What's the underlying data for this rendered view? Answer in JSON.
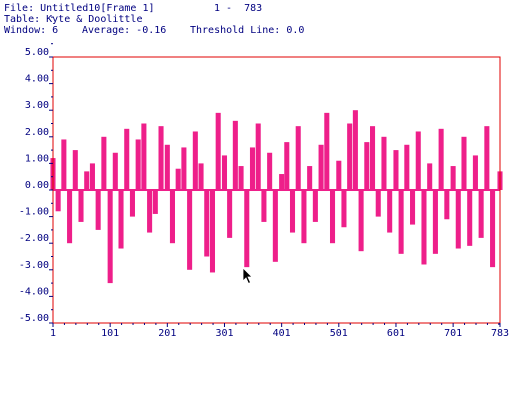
{
  "header": {
    "file_label": "File: Untitled10[Frame 1]",
    "range_label": "1 -  783",
    "table_label": "Table: Kyte & Doolittle",
    "window_label": "Window: 6",
    "average_label": "Average: -0.16",
    "threshold_label": "Threshold Line: 0.0"
  },
  "colors": {
    "frame": "#e00000",
    "series": "#ee1f8a",
    "axis_text": "#000080"
  },
  "chart_data": {
    "type": "bar",
    "title": "",
    "xlabel": "",
    "ylabel": "",
    "xlim": [
      1,
      783
    ],
    "ylim": [
      -5,
      5
    ],
    "threshold": 0.0,
    "x_ticks": [
      "1",
      "101",
      "201",
      "301",
      "401",
      "501",
      "601",
      "701",
      "783"
    ],
    "y_ticks": [
      "5.00",
      "4.00",
      "3.00",
      "2.00",
      "1.00",
      "0.00",
      "-1.00",
      "-2.00",
      "-3.00",
      "-4.00",
      "-5.00"
    ],
    "grid": false,
    "series": [
      {
        "x": [
          1,
          10,
          20,
          30,
          40,
          50,
          60,
          70,
          80,
          90,
          101,
          110,
          120,
          130,
          140,
          150,
          160,
          170,
          180,
          190,
          201,
          210,
          220,
          230,
          240,
          250,
          260,
          270,
          280,
          290,
          301,
          310,
          320,
          330,
          340,
          350,
          360,
          370,
          380,
          390,
          401,
          410,
          420,
          430,
          440,
          450,
          460,
          470,
          480,
          490,
          501,
          510,
          520,
          530,
          540,
          550,
          560,
          570,
          580,
          590,
          601,
          610,
          620,
          630,
          640,
          650,
          660,
          670,
          680,
          690,
          701,
          710,
          720,
          730,
          740,
          750,
          760,
          770,
          783
        ],
        "values": [
          1.2,
          -0.8,
          1.9,
          -2.0,
          1.5,
          -1.2,
          0.7,
          1.0,
          -1.5,
          2.0,
          -3.5,
          1.4,
          -2.2,
          2.3,
          -1.0,
          1.9,
          2.5,
          -1.6,
          -0.9,
          2.4,
          1.7,
          -2.0,
          0.8,
          1.6,
          -3.0,
          2.2,
          1.0,
          -2.5,
          -3.1,
          2.9,
          1.3,
          -1.8,
          2.6,
          0.9,
          -2.9,
          1.6,
          2.5,
          -1.2,
          1.4,
          -2.7,
          0.6,
          1.8,
          -1.6,
          2.4,
          -2.0,
          0.9,
          -1.2,
          1.7,
          2.9,
          -2.0,
          1.1,
          -1.4,
          2.5,
          3.0,
          -2.3,
          1.8,
          2.4,
          -1.0,
          2.0,
          -1.6,
          1.5,
          -2.4,
          1.7,
          -1.3,
          2.2,
          -2.8,
          1.0,
          -2.4,
          2.3,
          -1.1,
          0.9,
          -2.2,
          2.0,
          -2.1,
          1.3,
          -1.8,
          2.4,
          -2.9,
          0.7
        ]
      }
    ]
  }
}
